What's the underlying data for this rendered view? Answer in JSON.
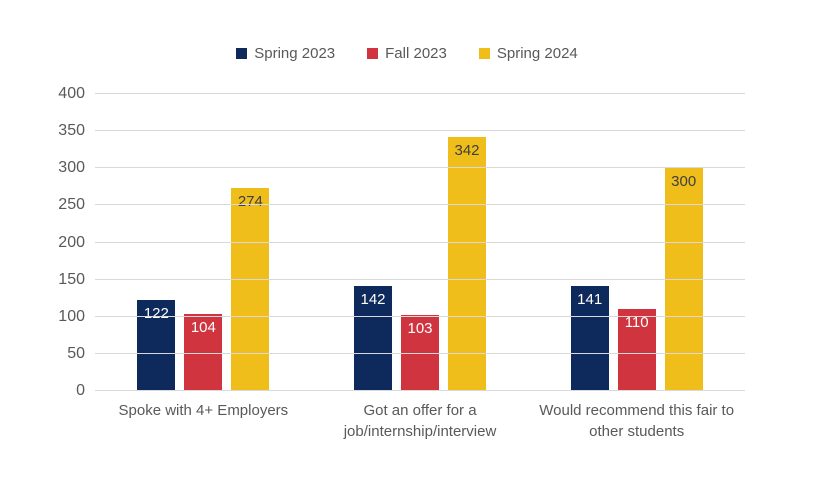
{
  "chart_data": {
    "type": "bar",
    "categories": [
      "Spoke with 4+ Employers",
      "Got an offer for a job/internship/interview",
      "Would recommend this fair to other students"
    ],
    "series": [
      {
        "name": "Spring 2023",
        "color": "#0E2A5C",
        "label_color": "#FFFFFF",
        "values": [
          122,
          142,
          141
        ]
      },
      {
        "name": "Fall 2023",
        "color": "#D0343F",
        "label_color": "#FFFFFF",
        "values": [
          104,
          103,
          110
        ]
      },
      {
        "name": "Spring 2024",
        "color": "#EFBE1B",
        "label_color": "#3F3F3F",
        "values": [
          274,
          342,
          300
        ]
      }
    ],
    "title": "",
    "xlabel": "",
    "ylabel": "",
    "ylim": [
      0,
      400
    ],
    "yticks": [
      0,
      50,
      100,
      150,
      200,
      250,
      300,
      350,
      400
    ],
    "grid": true,
    "legend_position": "top"
  },
  "style": {
    "background": "#FFFFFF",
    "grid_color": "#D9D9D9",
    "axis_text_color": "#595959"
  }
}
